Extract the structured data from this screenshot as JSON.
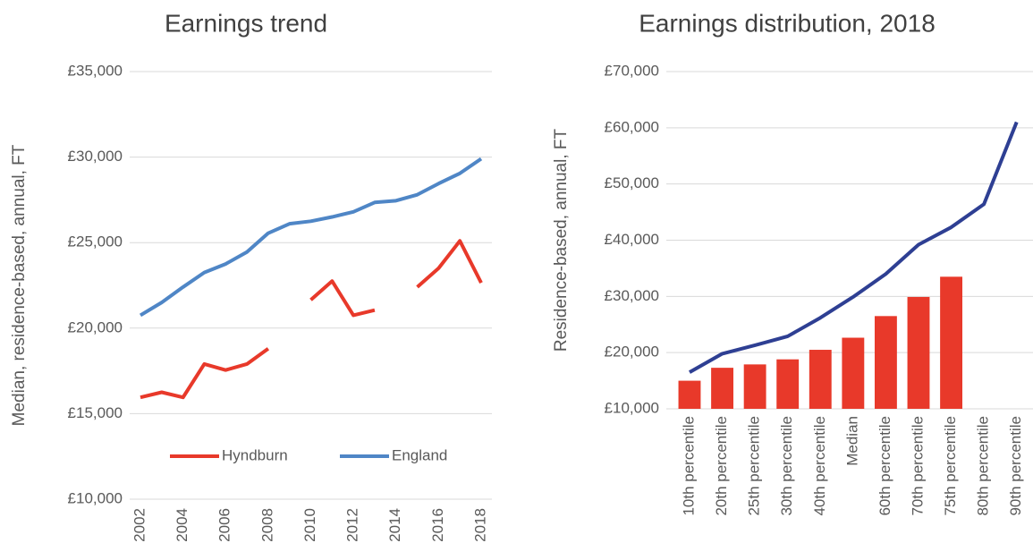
{
  "chart_data": [
    {
      "type": "line",
      "title": "Earnings trend",
      "y_label": "Median, residence-based, annual, FT",
      "x": [
        2002,
        2003,
        2004,
        2005,
        2006,
        2007,
        2008,
        2009,
        2010,
        2011,
        2012,
        2013,
        2014,
        2015,
        2016,
        2017,
        2018
      ],
      "xlim": [
        2002,
        2018
      ],
      "xticks": [
        2002,
        2004,
        2006,
        2008,
        2010,
        2012,
        2014,
        2016,
        2018
      ],
      "ylim": [
        10000,
        35000
      ],
      "yticks": [
        {
          "value": 10000,
          "label": "£10,000"
        },
        {
          "value": 15000,
          "label": "£15,000"
        },
        {
          "value": 20000,
          "label": "£20,000"
        },
        {
          "value": 25000,
          "label": "£25,000"
        },
        {
          "value": 30000,
          "label": "£30,000"
        },
        {
          "value": 35000,
          "label": "£35,000"
        }
      ],
      "grid": true,
      "legend": "bottom",
      "series": [
        {
          "name": "Hyndburn",
          "color": "#e8392a",
          "values": [
            15950,
            16250,
            15950,
            17900,
            17550,
            17900,
            18800,
            null,
            21650,
            22750,
            20750,
            21050,
            null,
            22400,
            23500,
            25100,
            22650
          ]
        },
        {
          "name": "England",
          "color": "#4f86c6",
          "values": [
            20750,
            21500,
            22400,
            23250,
            23750,
            24450,
            25550,
            26100,
            26250,
            26500,
            26800,
            27350,
            27450,
            27800,
            28450,
            29050,
            29900
          ]
        }
      ]
    },
    {
      "type": "bar",
      "title": "Earnings distribution, 2018",
      "y_label": "Residence-based, annual, FT",
      "categories": [
        "10th percentile",
        "20th percentile",
        "25th percentile",
        "30th percentile",
        "40th percentile",
        "Median",
        "60th percentile",
        "70th percentile",
        "75th percentile",
        "80th percentile",
        "90th percentile"
      ],
      "ylim": [
        10000,
        70000
      ],
      "yticks": [
        {
          "value": 10000,
          "label": "£10,000"
        },
        {
          "value": 20000,
          "label": "£20,000"
        },
        {
          "value": 30000,
          "label": "£30,000"
        },
        {
          "value": 40000,
          "label": "£40,000"
        },
        {
          "value": 50000,
          "label": "£50,000"
        },
        {
          "value": 60000,
          "label": "£60,000"
        },
        {
          "value": 70000,
          "label": "£70,000"
        }
      ],
      "grid": true,
      "series": [
        {
          "type": "bar",
          "color": "#e8392a",
          "values": [
            15000,
            17300,
            17900,
            18800,
            20500,
            22650,
            26500,
            29900,
            33500,
            null,
            null
          ]
        },
        {
          "type": "line",
          "color": "#2e3f93",
          "values": [
            16500,
            19800,
            21300,
            22900,
            26200,
            29900,
            34000,
            39200,
            42300,
            46400,
            61000
          ]
        }
      ]
    }
  ]
}
